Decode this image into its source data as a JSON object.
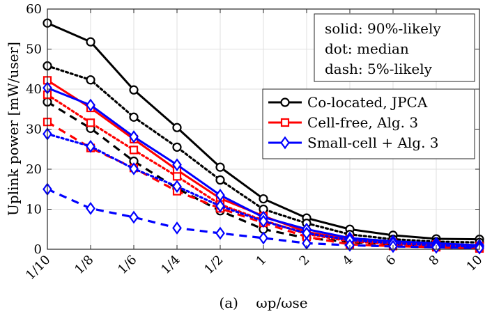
{
  "chart_data": {
    "type": "line",
    "title": "",
    "xlabel": "(a)    ωp/ωse",
    "ylabel": "Uplink power [mW/user]",
    "categories": [
      "1/10",
      "1/8",
      "1/6",
      "1/4",
      "1/2",
      "1",
      "2",
      "4",
      "6",
      "8",
      "10"
    ],
    "ylim": [
      0,
      60
    ],
    "yticks": [
      0,
      10,
      20,
      30,
      40,
      50,
      60
    ],
    "grid": true,
    "legend_position": "right",
    "annotation_lines": [
      "solid: 90%-likely",
      "dot: median",
      "dash: 5%-likely"
    ],
    "series": [
      {
        "name": "Co-located, JPCA",
        "legend": true,
        "color": "#000000",
        "marker": "circle",
        "style": "solid",
        "values": [
          56.5,
          51.8,
          39.8,
          30.4,
          20.5,
          12.6,
          7.8,
          5.0,
          3.5,
          2.6,
          2.5
        ]
      },
      {
        "name": "Co-located, JPCA (median)",
        "legend": false,
        "color": "#000000",
        "marker": "circle",
        "style": "dot",
        "values": [
          45.8,
          42.3,
          33.0,
          25.5,
          17.3,
          10.0,
          6.5,
          3.7,
          2.5,
          1.9,
          1.7
        ]
      },
      {
        "name": "Co-located, JPCA (5%)",
        "legend": false,
        "color": "#000000",
        "marker": "circle",
        "style": "dash",
        "values": [
          36.8,
          30.2,
          22.0,
          15.2,
          9.6,
          5.0,
          2.8,
          1.8,
          1.2,
          0.9,
          0.7
        ]
      },
      {
        "name": "Cell-free, Alg. 3",
        "legend": true,
        "color": "#ff0000",
        "marker": "square",
        "style": "solid",
        "values": [
          42.2,
          35.3,
          27.5,
          19.8,
          12.7,
          8.3,
          4.3,
          2.5,
          1.6,
          1.2,
          0.8
        ]
      },
      {
        "name": "Cell-free, Alg. 3 (median)",
        "legend": false,
        "color": "#ff0000",
        "marker": "square",
        "style": "dot",
        "values": [
          38.6,
          31.6,
          24.8,
          18.2,
          11.2,
          7.2,
          3.8,
          2.0,
          1.3,
          0.9,
          0.5
        ]
      },
      {
        "name": "Cell-free, Alg. 3 (5%)",
        "legend": false,
        "color": "#ff0000",
        "marker": "square",
        "style": "dash",
        "values": [
          31.8,
          25.3,
          20.3,
          14.5,
          10.2,
          6.6,
          3.1,
          1.2,
          0.8,
          0.5,
          0.2
        ]
      },
      {
        "name": "Small-cell + Alg. 3",
        "legend": true,
        "color": "#0000ff",
        "marker": "diamond",
        "style": "solid",
        "values": [
          40.3,
          36.0,
          28.1,
          21.1,
          13.5,
          8.0,
          5.0,
          2.8,
          2.0,
          1.5,
          1.0
        ]
      },
      {
        "name": "Small-cell + Alg. 3 (median)",
        "legend": false,
        "color": "#0000ff",
        "marker": "diamond",
        "style": "dot",
        "values": [
          28.8,
          25.7,
          20.1,
          15.7,
          10.8,
          7.0,
          4.0,
          2.3,
          1.5,
          1.0,
          0.6
        ]
      },
      {
        "name": "Small-cell + Alg. 3 (5%)",
        "legend": false,
        "color": "#0000ff",
        "marker": "diamond",
        "style": "dash",
        "values": [
          15.0,
          10.2,
          8.0,
          5.3,
          4.0,
          2.8,
          1.5,
          1.0,
          0.7,
          0.5,
          0.3
        ]
      }
    ]
  }
}
